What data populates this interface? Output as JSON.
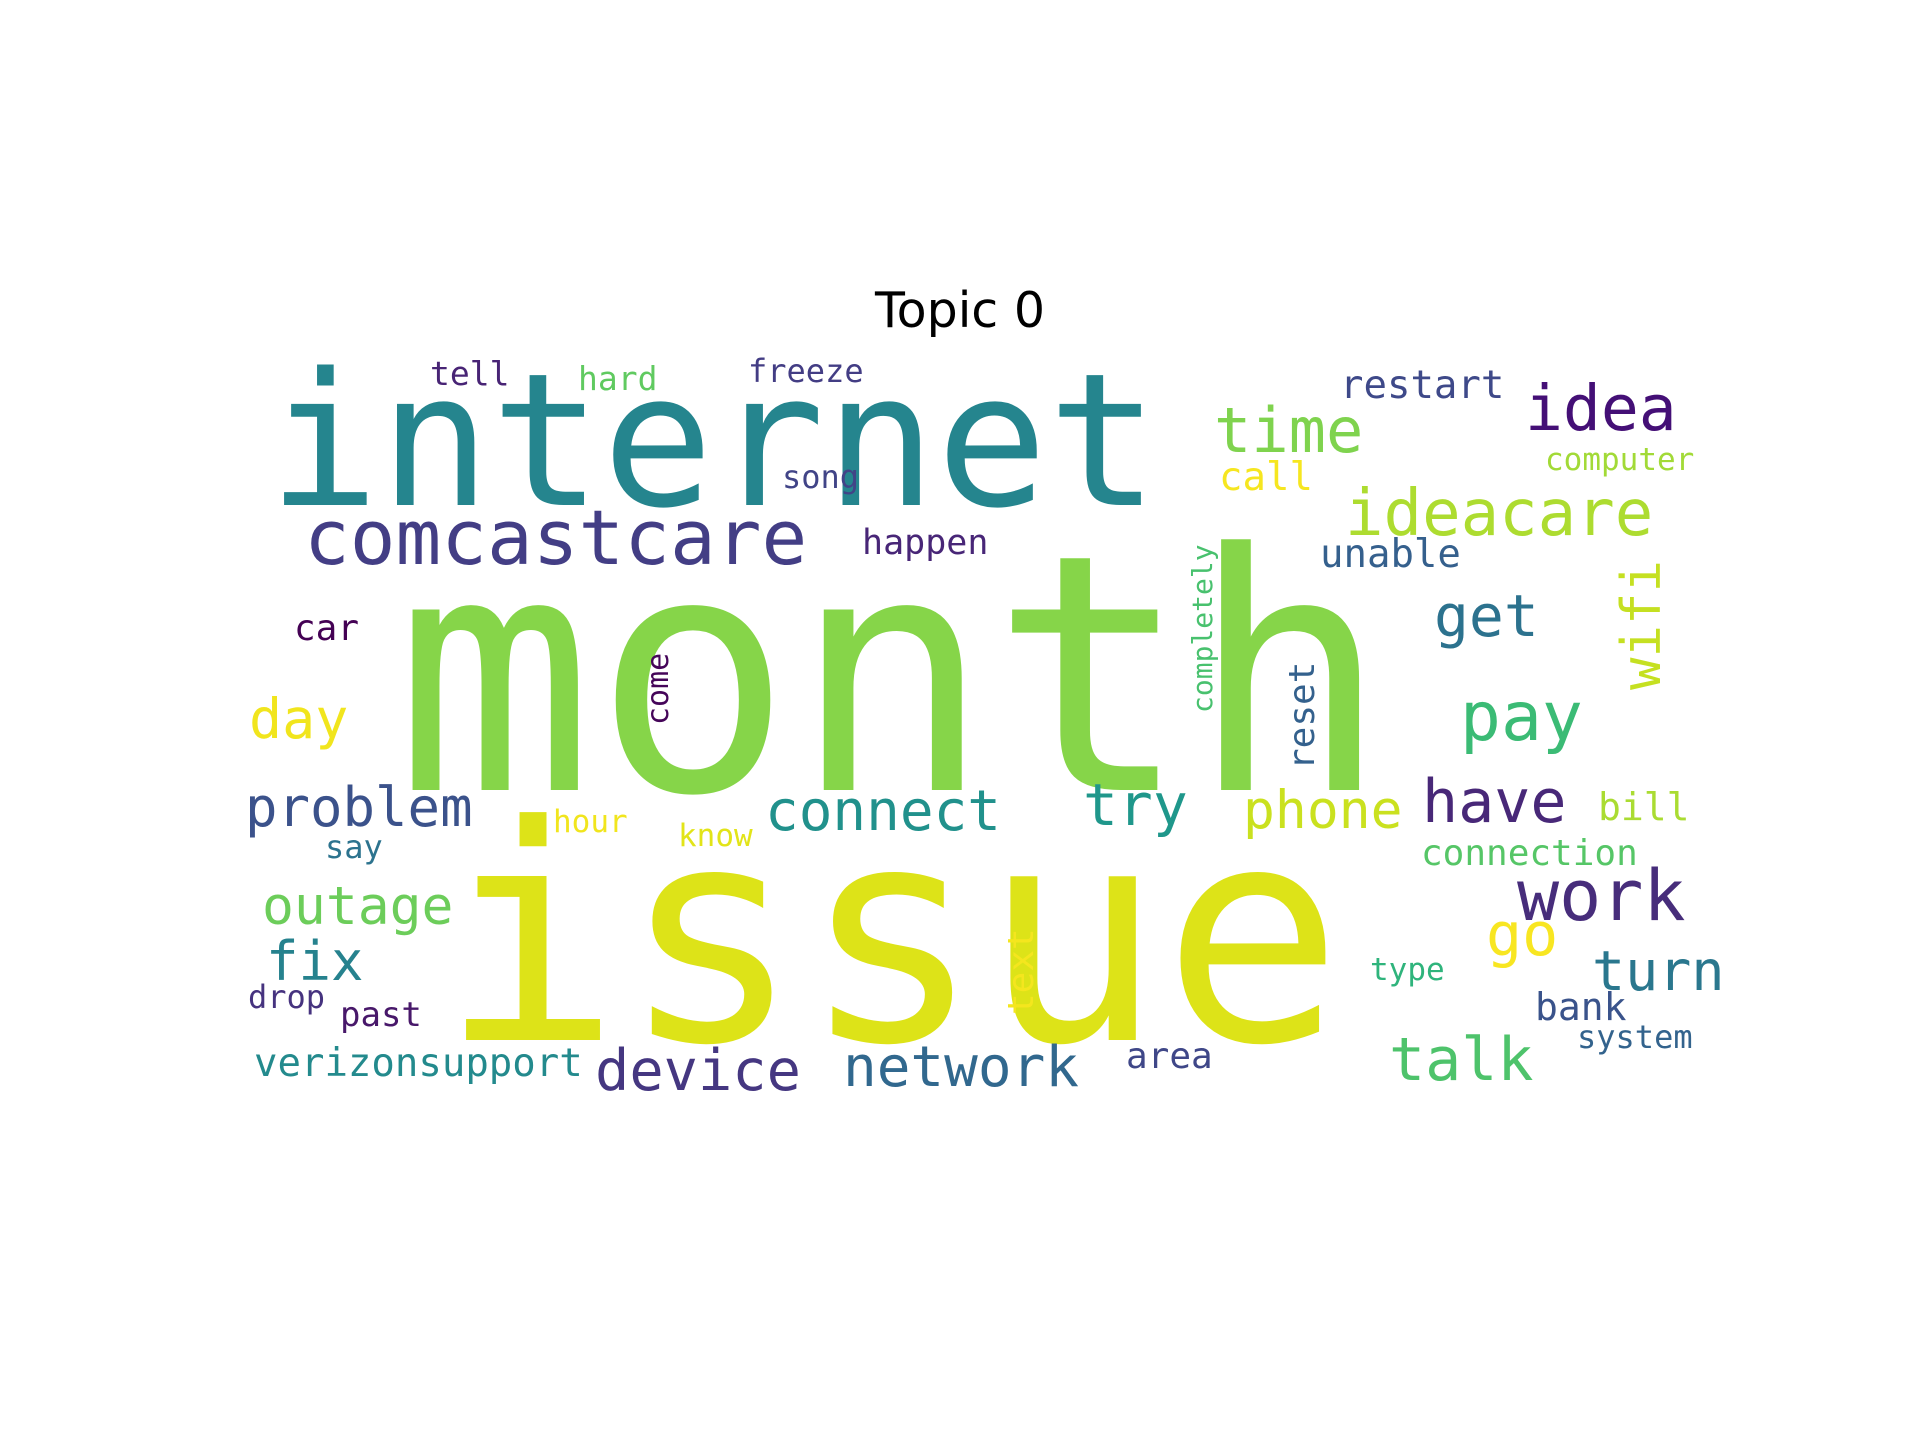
{
  "title": "Topic 0",
  "words": [
    {
      "text": "month",
      "color": "#86d549"
    },
    {
      "text": "issue",
      "color": "#dde318"
    },
    {
      "text": "internet",
      "color": "#25858e"
    },
    {
      "text": "comcastcare",
      "color": "#433e85"
    },
    {
      "text": "idea",
      "color": "#440f76"
    },
    {
      "text": "time",
      "color": "#7fd34e"
    },
    {
      "text": "ideacare",
      "color": "#addc30"
    },
    {
      "text": "wifi",
      "color": "#c5e021"
    },
    {
      "text": "restart",
      "color": "#3e4989"
    },
    {
      "text": "computer",
      "color": "#a2da37"
    },
    {
      "text": "get",
      "color": "#2c728e"
    },
    {
      "text": "pay",
      "color": "#3bbb75"
    },
    {
      "text": "work",
      "color": "#472d7b"
    },
    {
      "text": "have",
      "color": "#482878"
    },
    {
      "text": "phone",
      "color": "#cae11f"
    },
    {
      "text": "try",
      "color": "#1f978b"
    },
    {
      "text": "connect",
      "color": "#21918c"
    },
    {
      "text": "problem",
      "color": "#3b528b"
    },
    {
      "text": "day",
      "color": "#f1e51d"
    },
    {
      "text": "outage",
      "color": "#6ccd5a"
    },
    {
      "text": "fix",
      "color": "#26828e"
    },
    {
      "text": "talk",
      "color": "#4ec36b"
    },
    {
      "text": "turn",
      "color": "#2a778e"
    },
    {
      "text": "go",
      "color": "#f8e621"
    },
    {
      "text": "device",
      "color": "#453781"
    },
    {
      "text": "network",
      "color": "#31688e"
    },
    {
      "text": "verizonsupport",
      "color": "#238a8d"
    },
    {
      "text": "tell",
      "color": "#482475"
    },
    {
      "text": "hard",
      "color": "#60ca60"
    },
    {
      "text": "freeze",
      "color": "#433d84"
    },
    {
      "text": "song",
      "color": "#414487"
    },
    {
      "text": "call",
      "color": "#f6e620"
    },
    {
      "text": "happen",
      "color": "#482677"
    },
    {
      "text": "unable",
      "color": "#35608d"
    },
    {
      "text": "car",
      "color": "#440154"
    },
    {
      "text": "come",
      "color": "#450559"
    },
    {
      "text": "completely",
      "color": "#48c16e"
    },
    {
      "text": "reset",
      "color": "#34618d"
    },
    {
      "text": "hour",
      "color": "#f1e51d"
    },
    {
      "text": "know",
      "color": "#e2e418"
    },
    {
      "text": "say",
      "color": "#2c738e"
    },
    {
      "text": "bill",
      "color": "#aadc32"
    },
    {
      "text": "connection",
      "color": "#56c667"
    },
    {
      "text": "type",
      "color": "#2fb47c"
    },
    {
      "text": "bank",
      "color": "#3a538b"
    },
    {
      "text": "system",
      "color": "#33638d"
    },
    {
      "text": "text",
      "color": "#f4e61e"
    },
    {
      "text": "drop",
      "color": "#46337f"
    },
    {
      "text": "past",
      "color": "#48186a"
    },
    {
      "text": "area",
      "color": "#3f4788"
    }
  ]
}
